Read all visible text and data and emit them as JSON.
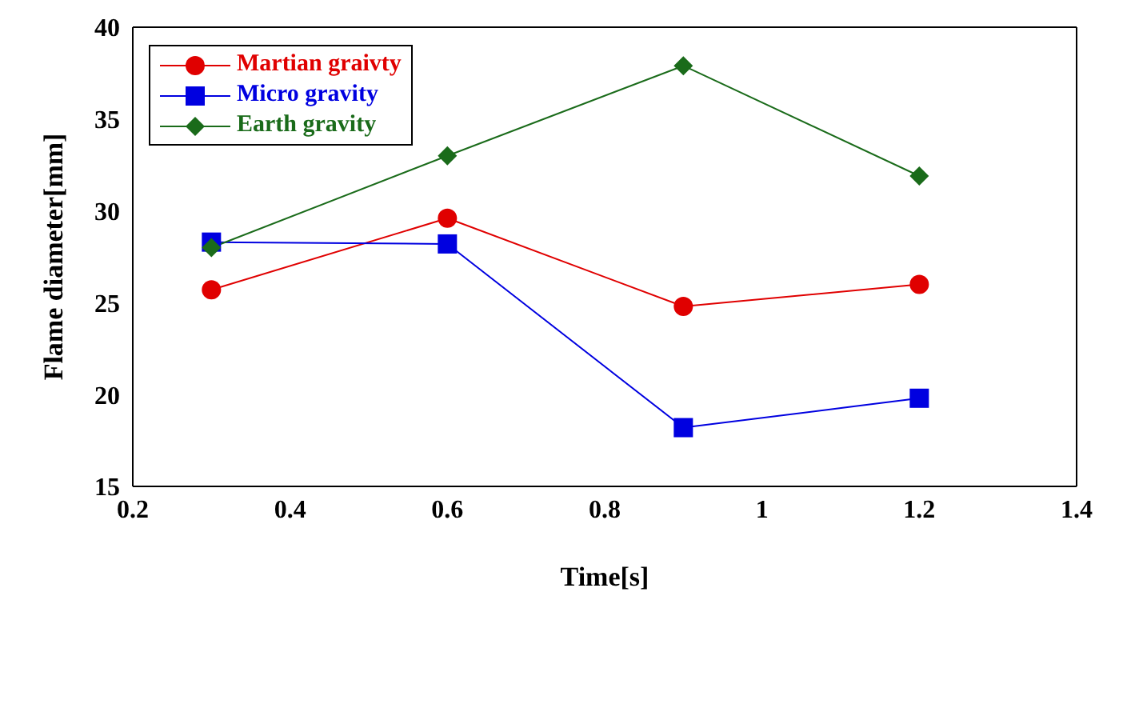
{
  "chart_data": {
    "type": "line",
    "xlabel": "Time[s]",
    "ylabel": "Flame diameter[mm]",
    "x": [
      0.3,
      0.6,
      0.9,
      1.2
    ],
    "series": [
      {
        "name": "Martian graivty",
        "color": "#e00000",
        "marker": "circle",
        "values": [
          25.7,
          29.6,
          24.8,
          26.0
        ]
      },
      {
        "name": "Micro gravity",
        "color": "#0000e0",
        "marker": "square",
        "values": [
          28.3,
          28.2,
          18.2,
          19.8
        ]
      },
      {
        "name": "Earth gravity",
        "color": "#1a6b1a",
        "marker": "diamond",
        "values": [
          28.0,
          33.0,
          37.9,
          31.9
        ]
      }
    ],
    "xlim": [
      0.2,
      1.4
    ],
    "xticks": [
      0.2,
      0.4,
      0.6,
      0.8,
      1,
      1.2,
      1.4
    ],
    "ylim": [
      15,
      40
    ],
    "yticks": [
      15,
      20,
      25,
      30,
      35,
      40
    ],
    "grid": false,
    "legend": "top left"
  }
}
